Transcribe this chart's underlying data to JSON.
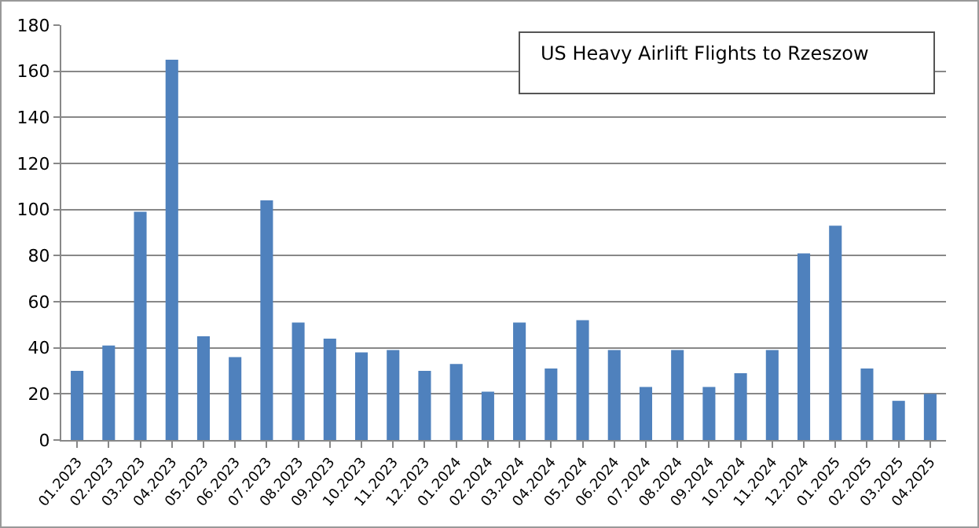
{
  "chart_data": {
    "type": "bar",
    "title": "US Heavy Airlift Flights to Rzeszow",
    "categories": [
      "01.2023",
      "02.2023",
      "03.2023",
      "04.2023",
      "05.2023",
      "06.2023",
      "07.2023",
      "08.2023",
      "09.2023",
      "10.2023",
      "11.2023",
      "12.2023",
      "01.2024",
      "02.2024",
      "03.2024",
      "04.2024",
      "05.2024",
      "06.2024",
      "07.2024",
      "08.2024",
      "09.2024",
      "10.2024",
      "11.2024",
      "12.2024",
      "01.2025",
      "02.2025",
      "03.2025",
      "04.2025"
    ],
    "values": [
      30,
      41,
      99,
      165,
      45,
      36,
      104,
      51,
      44,
      38,
      39,
      30,
      33,
      21,
      51,
      31,
      52,
      39,
      23,
      39,
      23,
      29,
      39,
      81,
      93,
      31,
      17,
      20
    ],
    "color": "#4f81bd",
    "ylim": [
      0,
      180
    ],
    "yticks": [
      0,
      20,
      40,
      60,
      80,
      100,
      120,
      140,
      160,
      180
    ],
    "grid": "y"
  }
}
